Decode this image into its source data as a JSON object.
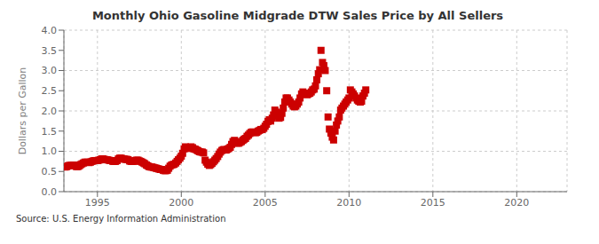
{
  "chart_data": {
    "type": "scatter",
    "title": "Monthly Ohio Gasoline Midgrade DTW Sales Price by All Sellers",
    "ylabel": "Dollars per Gallon",
    "annotations": [
      "Source: U.S. Energy Information Administration"
    ],
    "xlim": [
      1993.0,
      2023.0
    ],
    "ylim": [
      0.0,
      4.0
    ],
    "xticks": [
      1995,
      2000,
      2005,
      2010,
      2015,
      2020
    ],
    "yticks": [
      {
        "value": 0.0,
        "label": "0.0"
      },
      0.5,
      {
        "value": 1.0,
        "label": "1.0"
      },
      1.5,
      {
        "value": 2.0,
        "label": "2.0"
      },
      2.5,
      {
        "value": 3.0,
        "label": "3.0"
      },
      3.5,
      {
        "value": 4.0,
        "label": "4.0"
      }
    ],
    "grid": true,
    "color": "#cc0000",
    "marker": "square",
    "x": [
      1993.08,
      1993.17,
      1993.25,
      1993.33,
      1993.42,
      1993.5,
      1993.58,
      1993.67,
      1993.75,
      1993.83,
      1993.92,
      1994.0,
      1994.08,
      1994.17,
      1994.25,
      1994.33,
      1994.42,
      1994.5,
      1994.58,
      1994.67,
      1994.75,
      1994.83,
      1994.92,
      1995.0,
      1995.08,
      1995.17,
      1995.25,
      1995.33,
      1995.42,
      1995.5,
      1995.58,
      1995.67,
      1995.75,
      1995.83,
      1995.92,
      1996.0,
      1996.08,
      1996.17,
      1996.25,
      1996.33,
      1996.42,
      1996.5,
      1996.58,
      1996.67,
      1996.75,
      1996.83,
      1996.92,
      1997.0,
      1997.08,
      1997.17,
      1997.25,
      1997.33,
      1997.42,
      1997.5,
      1997.58,
      1997.67,
      1997.75,
      1997.83,
      1997.92,
      1998.0,
      1998.08,
      1998.17,
      1998.25,
      1998.33,
      1998.42,
      1998.5,
      1998.58,
      1998.67,
      1998.75,
      1998.83,
      1998.92,
      1999.0,
      1999.08,
      1999.17,
      1999.25,
      1999.33,
      1999.42,
      1999.5,
      1999.58,
      1999.67,
      1999.75,
      1999.83,
      1999.92,
      2000.0,
      2000.08,
      2000.17,
      2000.25,
      2000.33,
      2000.42,
      2000.5,
      2000.58,
      2000.67,
      2000.75,
      2000.83,
      2000.92,
      2001.0,
      2001.08,
      2001.17,
      2001.25,
      2001.33,
      2001.42,
      2001.5,
      2001.58,
      2001.67,
      2001.75,
      2001.83,
      2001.92,
      2002.0,
      2002.08,
      2002.17,
      2002.25,
      2002.33,
      2002.42,
      2002.5,
      2002.58,
      2002.67,
      2002.75,
      2002.83,
      2002.92,
      2003.0,
      2003.08,
      2003.17,
      2003.25,
      2003.33,
      2003.42,
      2003.5,
      2003.58,
      2003.67,
      2003.75,
      2003.83,
      2003.92,
      2004.0,
      2004.08,
      2004.17,
      2004.25,
      2004.33,
      2004.42,
      2004.5,
      2004.58,
      2004.67,
      2004.75,
      2004.83,
      2004.92,
      2005.0,
      2005.08,
      2005.17,
      2005.25,
      2005.33,
      2005.42,
      2005.5,
      2005.58,
      2005.67,
      2005.75,
      2005.83,
      2005.92,
      2006.0,
      2006.08,
      2006.17,
      2006.25,
      2006.33,
      2006.42,
      2006.5,
      2006.58,
      2006.67,
      2006.75,
      2006.83,
      2006.92,
      2007.0,
      2007.08,
      2007.17,
      2007.25,
      2007.33,
      2007.42,
      2007.5,
      2007.58,
      2007.67,
      2007.75,
      2007.83,
      2007.92,
      2008.0,
      2008.08,
      2008.17,
      2008.25,
      2008.33,
      2008.42,
      2008.5,
      2008.58,
      2008.67,
      2008.75,
      2008.83,
      2008.92,
      2009.0,
      2009.08,
      2009.17,
      2009.25,
      2009.33,
      2009.42,
      2009.5,
      2009.58,
      2009.67,
      2009.75,
      2009.83,
      2009.92,
      2010.0,
      2010.08,
      2010.17,
      2010.25,
      2010.33,
      2010.42,
      2010.5,
      2010.58,
      2010.67,
      2010.75,
      2010.83,
      2010.92,
      2011.0
    ],
    "values": [
      0.61,
      0.62,
      0.64,
      0.65,
      0.65,
      0.65,
      0.66,
      0.65,
      0.62,
      0.62,
      0.64,
      0.67,
      0.69,
      0.71,
      0.73,
      0.73,
      0.73,
      0.72,
      0.73,
      0.75,
      0.76,
      0.77,
      0.77,
      0.77,
      0.78,
      0.79,
      0.81,
      0.81,
      0.8,
      0.79,
      0.79,
      0.78,
      0.77,
      0.77,
      0.75,
      0.75,
      0.75,
      0.77,
      0.81,
      0.83,
      0.83,
      0.81,
      0.81,
      0.8,
      0.8,
      0.79,
      0.76,
      0.75,
      0.75,
      0.75,
      0.77,
      0.78,
      0.78,
      0.76,
      0.75,
      0.73,
      0.71,
      0.69,
      0.66,
      0.64,
      0.62,
      0.61,
      0.61,
      0.6,
      0.59,
      0.58,
      0.57,
      0.56,
      0.55,
      0.55,
      0.53,
      0.52,
      0.52,
      0.53,
      0.58,
      0.63,
      0.66,
      0.67,
      0.68,
      0.71,
      0.75,
      0.79,
      0.83,
      0.88,
      0.95,
      1.06,
      1.11,
      1.08,
      1.07,
      1.09,
      1.11,
      1.09,
      1.06,
      1.05,
      1.03,
      1.01,
      0.99,
      0.98,
      0.98,
      0.96,
      0.78,
      0.73,
      0.68,
      0.65,
      0.67,
      0.7,
      0.74,
      0.78,
      0.82,
      0.87,
      0.93,
      0.98,
      1.02,
      1.04,
      1.04,
      1.03,
      1.05,
      1.07,
      1.1,
      1.17,
      1.24,
      1.27,
      1.22,
      1.2,
      1.2,
      1.22,
      1.24,
      1.27,
      1.3,
      1.32,
      1.37,
      1.4,
      1.44,
      1.47,
      1.48,
      1.47,
      1.46,
      1.47,
      1.5,
      1.52,
      1.54,
      1.54,
      1.57,
      1.62,
      1.67,
      1.74,
      1.78,
      1.75,
      1.82,
      1.9,
      2.02,
      1.97,
      1.87,
      1.82,
      1.84,
      1.94,
      2.07,
      2.22,
      2.32,
      2.32,
      2.27,
      2.22,
      2.17,
      2.12,
      2.1,
      2.12,
      2.17,
      2.22,
      2.32,
      2.42,
      2.47,
      2.44,
      2.42,
      2.4,
      2.42,
      2.44,
      2.47,
      2.52,
      2.54,
      2.62,
      2.77,
      2.92,
      3.02,
      3.5,
      3.2,
      3.12,
      3.0,
      2.5,
      1.85,
      1.55,
      1.45,
      1.35,
      1.28,
      1.5,
      1.65,
      1.75,
      1.85,
      2.02,
      2.07,
      2.12,
      2.17,
      2.22,
      2.27,
      2.32,
      2.52,
      2.47,
      2.42,
      2.37,
      2.32,
      2.27,
      2.24,
      2.22,
      2.24,
      2.37,
      2.44,
      2.52
    ]
  }
}
